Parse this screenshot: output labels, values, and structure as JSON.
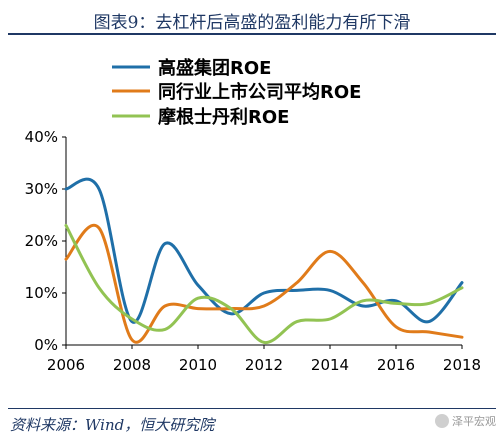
{
  "header": {
    "title": "图表9：去杠杆后高盛的盈利能力有所下滑"
  },
  "footer": {
    "source": "资料来源：Wind，恒大研究院",
    "watermark": "泽平宏观"
  },
  "colors": {
    "accent": "#1f3864",
    "gs": "#1f6fa8",
    "peer": "#e07b1a",
    "ms": "#92c353"
  },
  "chart_data": {
    "type": "line",
    "title": "",
    "xlabel": "",
    "ylabel": "",
    "xlim": [
      2006,
      2018
    ],
    "ylim": [
      0,
      40
    ],
    "x_ticks": [
      "2006",
      "2008",
      "2010",
      "2012",
      "2014",
      "2016",
      "2018"
    ],
    "y_ticks": [
      "0%",
      "10%",
      "20%",
      "30%",
      "40%"
    ],
    "grid": false,
    "legend_position": "top",
    "series": [
      {
        "name": "高盛集团ROE",
        "color": "#1f6fa8",
        "x": [
          2006,
          2007,
          2008,
          2009,
          2010,
          2011,
          2012,
          2013,
          2014,
          2015,
          2016,
          2017,
          2018
        ],
        "values": [
          30,
          30,
          4.5,
          19.5,
          11.5,
          6,
          10,
          10.5,
          10.5,
          7.5,
          8.5,
          4.5,
          12
        ]
      },
      {
        "name": "同行业上市公司平均ROE",
        "color": "#e07b1a",
        "x": [
          2006,
          2007,
          2008,
          2009,
          2010,
          2011,
          2012,
          2013,
          2014,
          2015,
          2016,
          2017,
          2018
        ],
        "values": [
          16.5,
          22.5,
          1,
          7.5,
          7,
          7,
          7.5,
          12,
          18,
          12,
          3.5,
          2.5,
          1.5
        ]
      },
      {
        "name": "摩根士丹利ROE",
        "color": "#92c353",
        "x": [
          2006,
          2007,
          2008,
          2009,
          2010,
          2011,
          2012,
          2013,
          2014,
          2015,
          2016,
          2017,
          2018
        ],
        "values": [
          23,
          11,
          5,
          3,
          9,
          7,
          0.5,
          4.5,
          5,
          8.5,
          8,
          8,
          11
        ]
      }
    ]
  }
}
